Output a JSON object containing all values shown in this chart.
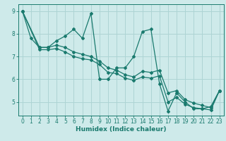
{
  "xlabel": "Humidex (Indice chaleur)",
  "xlim": [
    -0.5,
    23.5
  ],
  "ylim": [
    4.4,
    9.3
  ],
  "xticks": [
    0,
    1,
    2,
    3,
    4,
    5,
    6,
    7,
    8,
    9,
    10,
    11,
    12,
    13,
    14,
    15,
    16,
    17,
    18,
    19,
    20,
    21,
    22,
    23
  ],
  "yticks": [
    5,
    6,
    7,
    8,
    9
  ],
  "bg_color": "#ceeaea",
  "grid_color": "#add4d4",
  "line_color": "#1a7a6e",
  "lines": [
    {
      "x": [
        0,
        1,
        2,
        3,
        4,
        5,
        6,
        7,
        8,
        9,
        10,
        11,
        12,
        13,
        14,
        15,
        16,
        17,
        18,
        19,
        20,
        21,
        22,
        23
      ],
      "y": [
        9.0,
        7.8,
        7.4,
        7.4,
        7.7,
        7.9,
        8.2,
        7.8,
        8.9,
        6.0,
        6.0,
        6.5,
        6.5,
        7.0,
        8.1,
        8.2,
        5.8,
        4.6,
        5.4,
        5.0,
        4.7,
        4.7,
        4.8,
        5.5
      ]
    },
    {
      "x": [
        0,
        2,
        3,
        4,
        5,
        6,
        7,
        8,
        9,
        10,
        11,
        12,
        13,
        14,
        15,
        16,
        17,
        18,
        19,
        20,
        21,
        22,
        23
      ],
      "y": [
        9.0,
        7.4,
        7.4,
        7.5,
        7.4,
        7.2,
        7.1,
        7.0,
        6.8,
        6.5,
        6.4,
        6.2,
        6.1,
        6.35,
        6.3,
        6.4,
        5.4,
        5.5,
        5.1,
        4.95,
        4.85,
        4.75,
        5.5
      ]
    },
    {
      "x": [
        0,
        2,
        3,
        4,
        5,
        6,
        7,
        8,
        9,
        10,
        11,
        12,
        13,
        14,
        15,
        16,
        17,
        18,
        19,
        20,
        21,
        22,
        23
      ],
      "y": [
        9.0,
        7.3,
        7.3,
        7.35,
        7.2,
        7.0,
        6.9,
        6.85,
        6.65,
        6.3,
        6.25,
        6.05,
        5.95,
        6.1,
        6.05,
        6.15,
        5.0,
        5.2,
        4.9,
        4.75,
        4.7,
        4.65,
        5.5
      ]
    }
  ]
}
